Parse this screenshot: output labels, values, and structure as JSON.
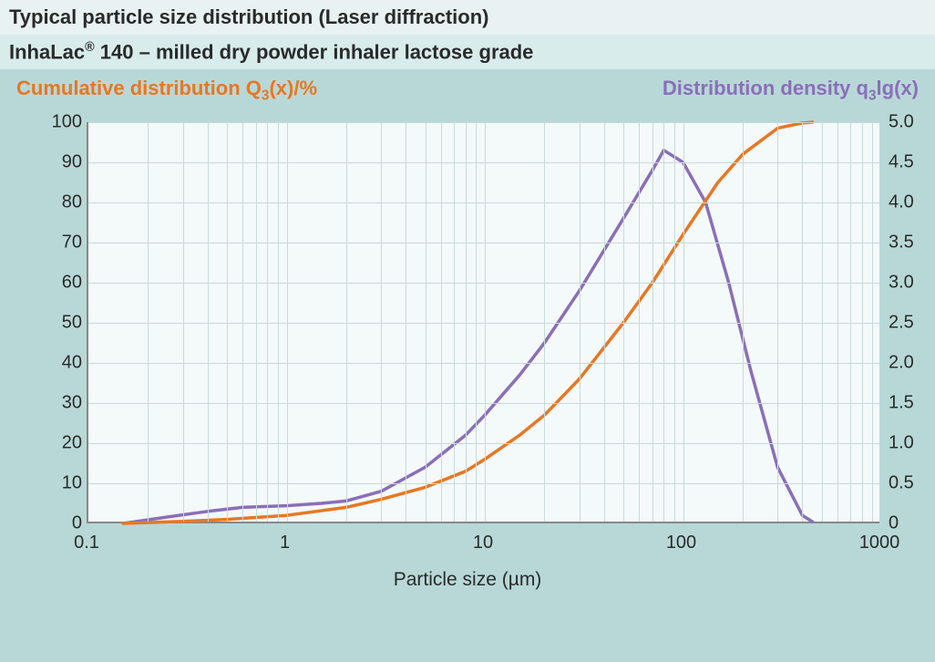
{
  "header": {
    "title1": "Typical particle size distribution (Laser diffraction)",
    "title2_prefix": "InhaLac",
    "title2_reg": "®",
    "title2_suffix": " 140 – milled dry powder inhaler lactose grade"
  },
  "axis_titles": {
    "left_prefix": "Cumulative distribution Q",
    "left_sub": "3",
    "left_suffix": "(x)/%",
    "right_prefix": "Distribution density q",
    "right_sub": "3",
    "right_suffix": "lg(x)"
  },
  "colors": {
    "background": "#b8d8d8",
    "plot_bg": "#f4f9f9",
    "grid": "#c8dada",
    "axis": "#888888",
    "cumulative": "#e87722",
    "density": "#8a6fb8",
    "text": "#2a2a2a",
    "header1_bg": "#e8f2f2",
    "header2_bg": "#d8ecec"
  },
  "chart": {
    "type": "line",
    "x_scale": "log",
    "xlim": [
      0.1,
      1000
    ],
    "x_ticks": [
      0.1,
      1,
      10,
      100,
      1000
    ],
    "x_tick_labels": [
      "0.1",
      "1",
      "10",
      "100",
      "1000"
    ],
    "y_left_lim": [
      0,
      100
    ],
    "y_left_ticks": [
      0,
      10,
      20,
      30,
      40,
      50,
      60,
      70,
      80,
      90,
      100
    ],
    "y_right_lim": [
      0,
      5.0
    ],
    "y_right_ticks": [
      0,
      0.5,
      1.0,
      1.5,
      2.0,
      2.5,
      3.0,
      3.5,
      4.0,
      4.5,
      5.0
    ],
    "y_right_labels": [
      "0",
      "0.5",
      "1.0",
      "1.5",
      "2.0",
      "2.5",
      "3.0",
      "3.5",
      "4.0",
      "4.5",
      "5.0"
    ],
    "xlabel": "Particle size (µm)",
    "line_width": 3.5,
    "cumulative_series": {
      "x": [
        0.15,
        0.3,
        0.5,
        1,
        2,
        3,
        5,
        8,
        10,
        15,
        20,
        30,
        50,
        70,
        100,
        150,
        200,
        300,
        400,
        450
      ],
      "y": [
        0,
        0.5,
        1,
        2,
        4,
        6,
        9,
        13,
        16,
        22,
        27,
        36,
        50,
        60,
        72,
        85,
        92,
        98.5,
        99.8,
        100
      ]
    },
    "density_series": {
      "x": [
        0.15,
        0.25,
        0.4,
        0.6,
        1,
        1.5,
        2,
        3,
        5,
        8,
        10,
        15,
        20,
        30,
        50,
        70,
        80,
        100,
        130,
        170,
        220,
        300,
        400,
        450
      ],
      "y": [
        0,
        0.08,
        0.15,
        0.2,
        0.22,
        0.25,
        0.28,
        0.4,
        0.7,
        1.1,
        1.35,
        1.85,
        2.25,
        2.9,
        3.8,
        4.4,
        4.65,
        4.5,
        4.0,
        3.0,
        1.9,
        0.7,
        0.1,
        0.02
      ]
    }
  }
}
